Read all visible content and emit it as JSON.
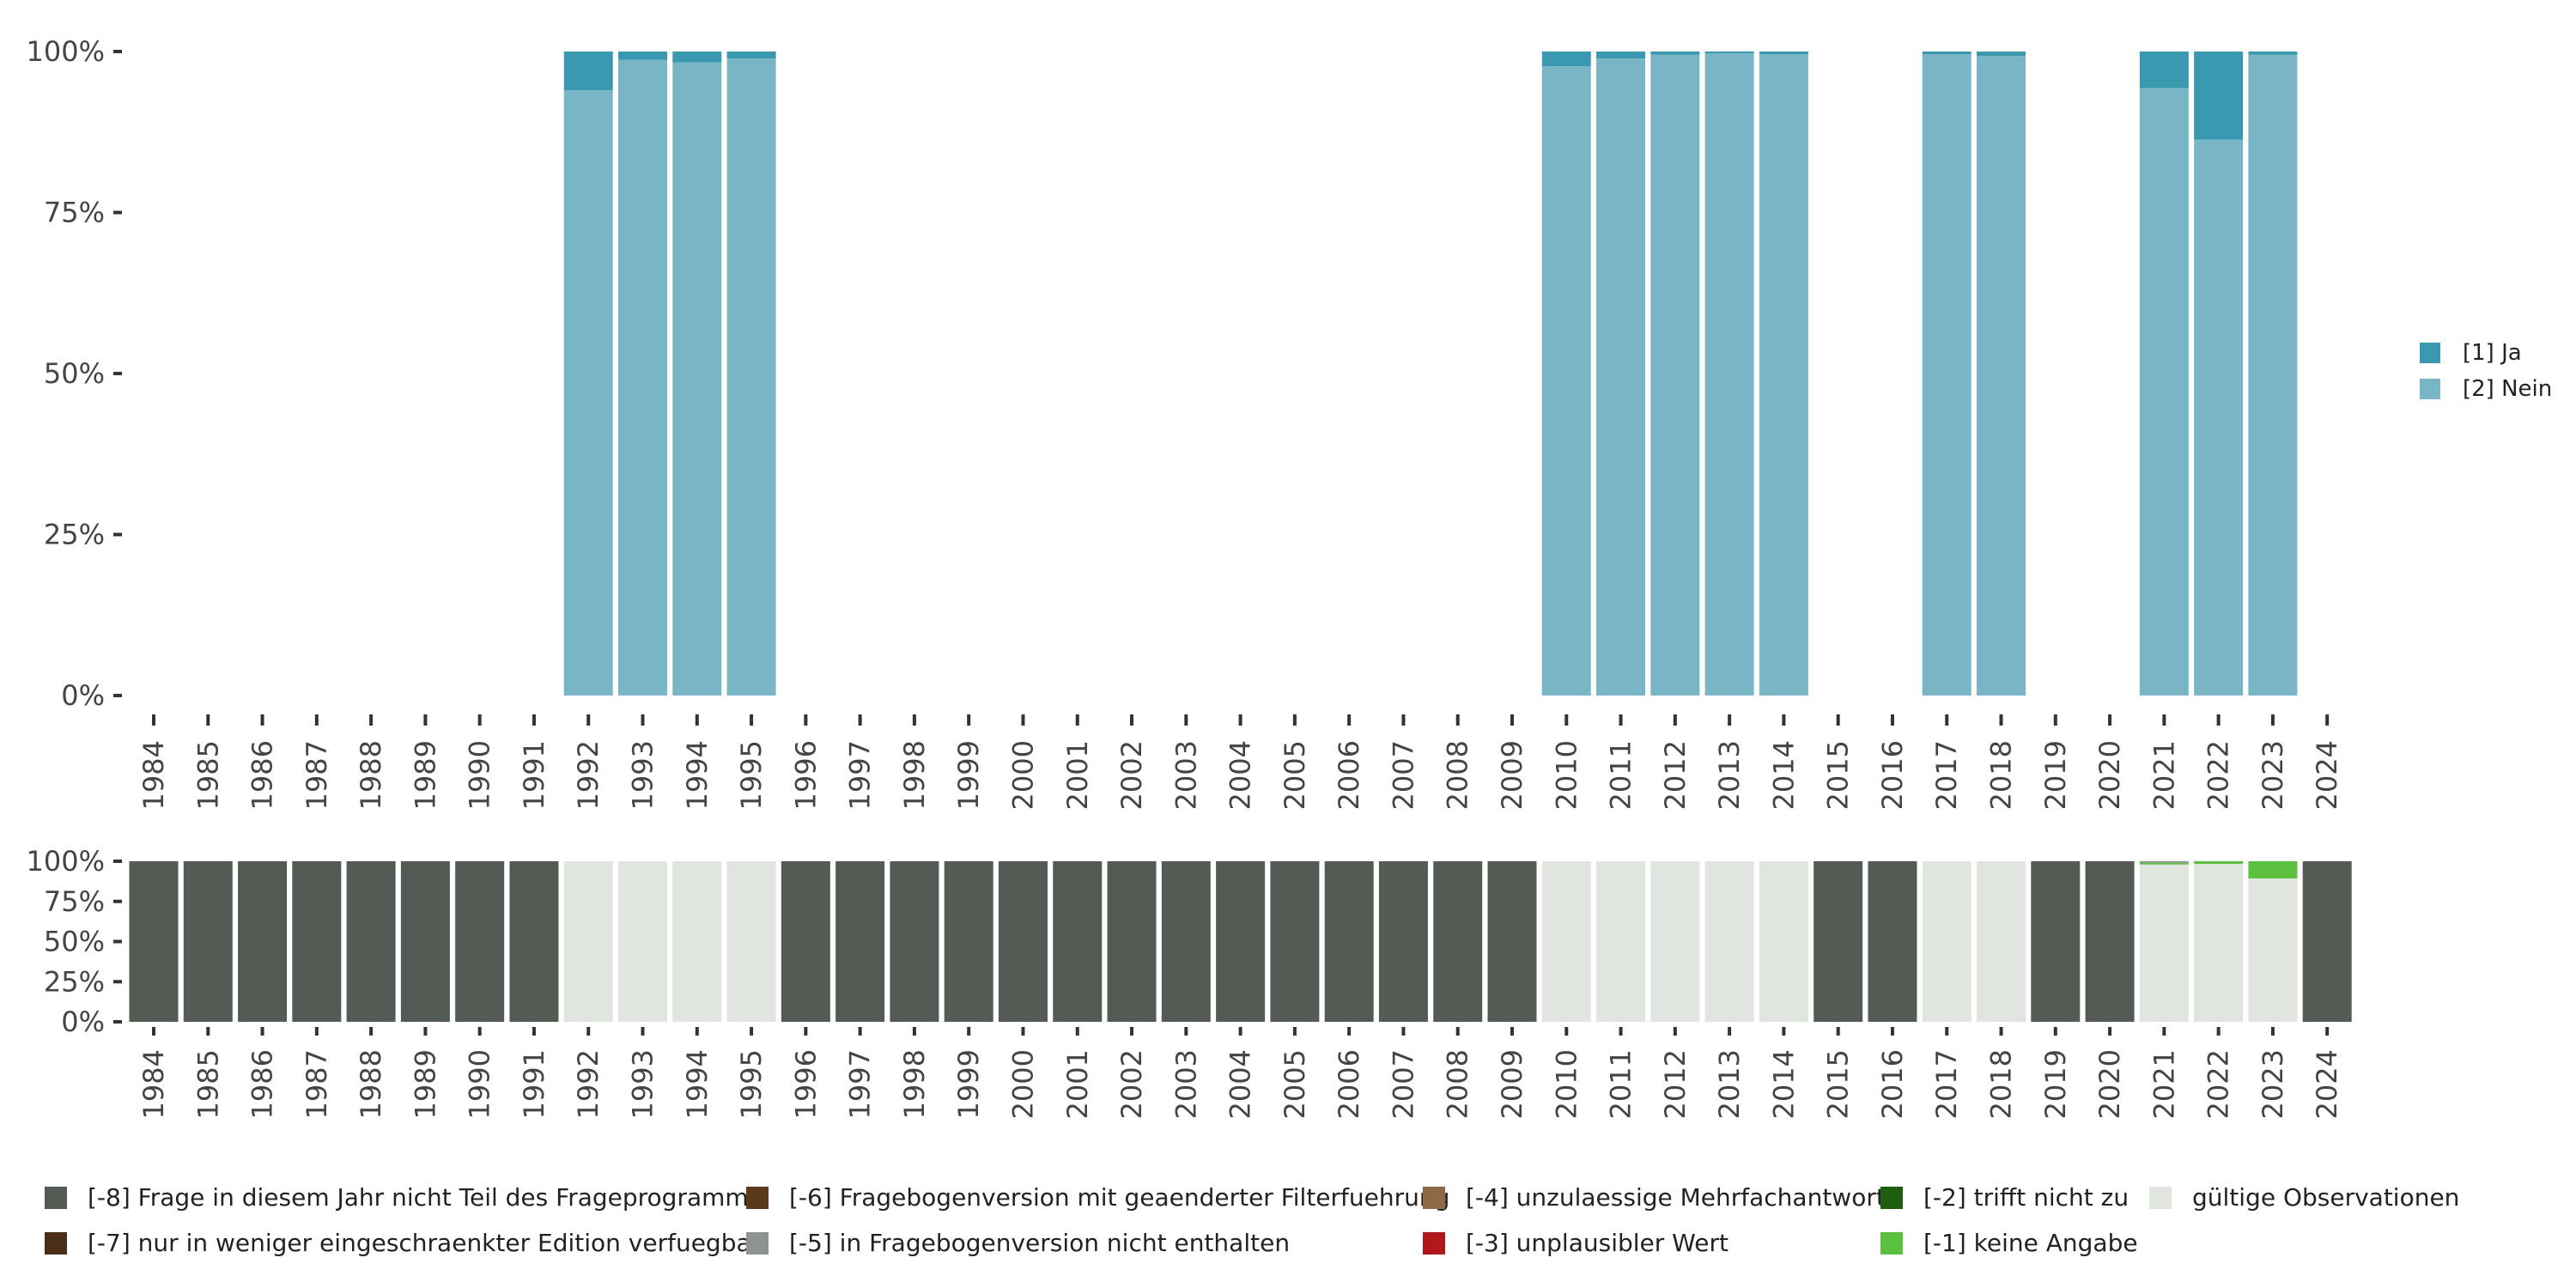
{
  "chart_data": [
    {
      "type": "bar",
      "stacked": true,
      "title": "",
      "xlabel": "",
      "ylabel": "",
      "ylim": [
        0,
        100
      ],
      "yticks": [
        "0%",
        "25%",
        "50%",
        "75%",
        "100%"
      ],
      "categories": [
        "1984",
        "1985",
        "1986",
        "1987",
        "1988",
        "1989",
        "1990",
        "1991",
        "1992",
        "1993",
        "1994",
        "1995",
        "1996",
        "1997",
        "1998",
        "1999",
        "2000",
        "2001",
        "2002",
        "2003",
        "2004",
        "2005",
        "2006",
        "2007",
        "2008",
        "2009",
        "2010",
        "2011",
        "2012",
        "2013",
        "2014",
        "2015",
        "2016",
        "2017",
        "2018",
        "2019",
        "2020",
        "2021",
        "2022",
        "2023",
        "2024"
      ],
      "legend_position": "right",
      "series": [
        {
          "name": "[2] Nein",
          "color": "#79b6c5",
          "values": [
            null,
            null,
            null,
            null,
            null,
            null,
            null,
            null,
            94.0,
            98.7,
            98.3,
            98.9,
            null,
            null,
            null,
            null,
            null,
            null,
            null,
            null,
            null,
            null,
            null,
            null,
            null,
            null,
            97.7,
            98.9,
            99.5,
            99.7,
            99.6,
            null,
            null,
            99.6,
            99.3,
            null,
            null,
            94.3,
            86.3,
            99.5,
            null
          ]
        },
        {
          "name": "[1] Ja",
          "color": "#3a99b1",
          "values": [
            null,
            null,
            null,
            null,
            null,
            null,
            null,
            null,
            6.0,
            1.3,
            1.7,
            1.1,
            null,
            null,
            null,
            null,
            null,
            null,
            null,
            null,
            null,
            null,
            null,
            null,
            null,
            null,
            2.3,
            1.1,
            0.5,
            0.3,
            0.4,
            null,
            null,
            0.4,
            0.7,
            null,
            null,
            5.7,
            13.7,
            0.5,
            null
          ]
        }
      ]
    },
    {
      "type": "bar",
      "stacked": true,
      "title": "",
      "xlabel": "",
      "ylabel": "",
      "ylim": [
        0,
        100
      ],
      "yticks": [
        "0%",
        "25%",
        "50%",
        "75%",
        "100%"
      ],
      "categories": [
        "1984",
        "1985",
        "1986",
        "1987",
        "1988",
        "1989",
        "1990",
        "1991",
        "1992",
        "1993",
        "1994",
        "1995",
        "1996",
        "1997",
        "1998",
        "1999",
        "2000",
        "2001",
        "2002",
        "2003",
        "2004",
        "2005",
        "2006",
        "2007",
        "2008",
        "2009",
        "2010",
        "2011",
        "2012",
        "2013",
        "2014",
        "2015",
        "2016",
        "2017",
        "2018",
        "2019",
        "2020",
        "2021",
        "2022",
        "2023",
        "2024"
      ],
      "legend_position": "bottom",
      "series": [
        {
          "name": "gültige Observationen",
          "color": "#e0e5e0",
          "values": [
            0,
            0,
            0,
            0,
            0,
            0,
            0,
            0,
            100,
            100,
            100,
            100,
            0,
            0,
            0,
            0,
            0,
            0,
            0,
            0,
            0,
            0,
            0,
            0,
            0,
            0,
            100,
            100,
            100,
            100,
            100,
            0,
            0,
            100,
            100,
            0,
            0,
            98,
            98.4,
            89.3,
            0
          ]
        },
        {
          "name": "[-1] keine Angabe",
          "color": "#5bbf3f",
          "values": [
            0,
            0,
            0,
            0,
            0,
            0,
            0,
            0,
            0,
            0,
            0,
            0,
            0,
            0,
            0,
            0,
            0,
            0,
            0,
            0,
            0,
            0,
            0,
            0,
            0,
            0,
            0,
            0,
            0,
            0,
            0,
            0,
            0,
            0,
            0,
            0,
            0,
            1,
            1.6,
            10.7,
            0
          ]
        },
        {
          "name": "[-5] in Fragebogenversion nicht enthalten",
          "color": "#8f938f",
          "values": [
            0,
            0,
            0,
            0,
            0,
            0,
            0,
            0,
            0,
            0,
            0,
            0,
            0,
            0,
            0,
            0,
            0,
            0,
            0,
            0,
            0,
            0,
            0,
            0,
            0,
            0,
            0,
            0,
            0,
            0,
            0,
            0,
            0,
            0,
            0,
            0,
            0,
            1,
            0,
            0,
            0
          ]
        },
        {
          "name": "[-8] Frage in diesem Jahr nicht Teil des Frageprogramms",
          "color": "#545b55",
          "values": [
            100,
            100,
            100,
            100,
            100,
            100,
            100,
            100,
            0,
            0,
            0,
            0,
            100,
            100,
            100,
            100,
            100,
            100,
            100,
            100,
            100,
            100,
            100,
            100,
            100,
            100,
            0,
            0,
            0,
            0,
            0,
            100,
            100,
            0,
            0,
            100,
            100,
            0,
            0,
            0,
            100
          ]
        }
      ]
    }
  ],
  "top_legend": [
    {
      "label": "[1] Ja",
      "color": "#3a99b1"
    },
    {
      "label": "[2] Nein",
      "color": "#79b6c5"
    }
  ],
  "bottom_legend": [
    {
      "label": "[-8] Frage in diesem Jahr nicht Teil des Frageprogramms",
      "color": "#545b55"
    },
    {
      "label": "[-7] nur in weniger eingeschraenkter Edition verfuegbar",
      "color": "#4a2e18"
    },
    {
      "label": "[-6] Fragebogenversion mit geaenderter Filterfuehrung",
      "color": "#5a3a1a"
    },
    {
      "label": "[-5] in Fragebogenversion nicht enthalten",
      "color": "#8f938f"
    },
    {
      "label": "[-4] unzulaessige Mehrfachantwort",
      "color": "#8c6a45"
    },
    {
      "label": "[-3] unplausibler Wert",
      "color": "#b0171b"
    },
    {
      "label": "[-2] trifft nicht zu",
      "color": "#1e5e10"
    },
    {
      "label": "[-1] keine Angabe",
      "color": "#5bbf3f"
    },
    {
      "label": "gültige Observationen",
      "color": "#e0e5e0"
    }
  ]
}
